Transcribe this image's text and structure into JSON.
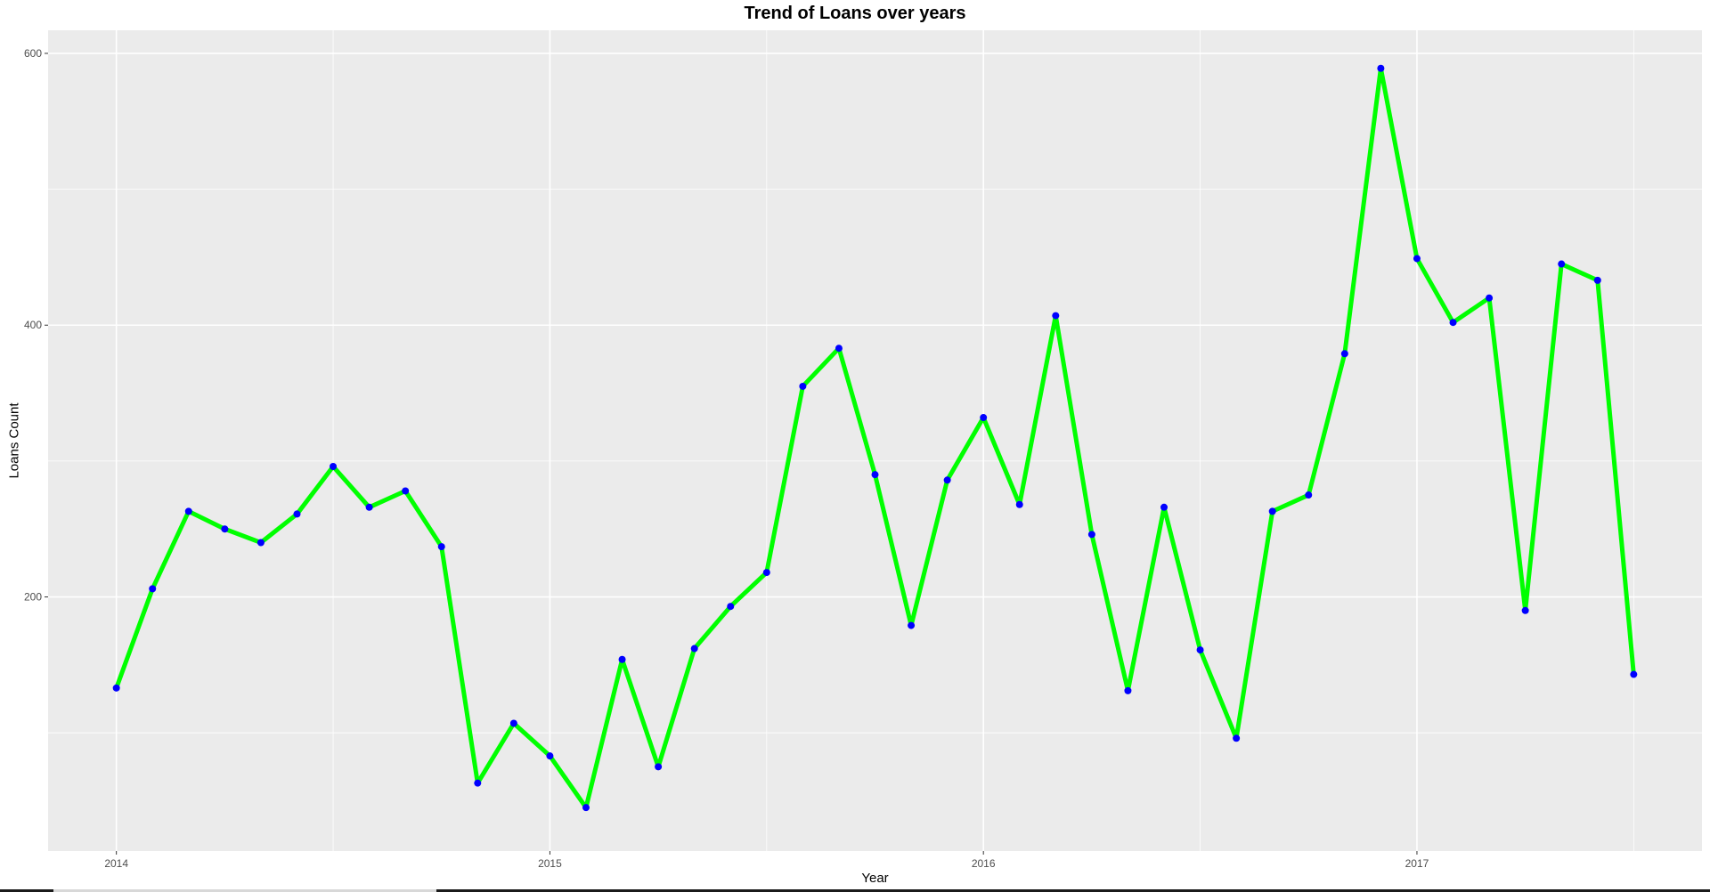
{
  "chart_data": {
    "type": "line",
    "title": "Trend of Loans over years",
    "xlabel": "Year",
    "ylabel": "Loans Count",
    "x_ticks": [
      "2014",
      "2015",
      "2016",
      "2017"
    ],
    "y_ticks": [
      "200",
      "400",
      "600"
    ],
    "ylim": [
      13,
      617
    ],
    "grid": true,
    "line_color": "#00ff00",
    "point_color": "#0000ff",
    "panel_color": "#ebebeb",
    "series": [
      {
        "x": [
          "2014-01",
          "2014-02",
          "2014-03",
          "2014-04",
          "2014-05",
          "2014-06",
          "2014-07",
          "2014-08",
          "2014-09",
          "2014-10",
          "2014-11",
          "2014-12",
          "2015-01",
          "2015-02",
          "2015-03",
          "2015-04",
          "2015-05",
          "2015-06",
          "2015-07",
          "2015-08",
          "2015-09",
          "2015-10",
          "2015-11",
          "2015-12",
          "2016-01",
          "2016-02",
          "2016-03",
          "2016-04",
          "2016-05",
          "2016-06",
          "2016-07",
          "2016-08",
          "2016-09",
          "2016-10",
          "2016-11",
          "2016-12",
          "2017-01",
          "2017-02",
          "2017-03",
          "2017-04",
          "2017-05",
          "2017-06",
          "2017-07"
        ],
        "values": [
          133,
          206,
          263,
          250,
          240,
          261,
          296,
          266,
          278,
          237,
          63,
          107,
          83,
          45,
          154,
          75,
          162,
          193,
          218,
          355,
          383,
          290,
          179,
          286,
          332,
          268,
          407,
          246,
          131,
          266,
          161,
          96,
          263,
          275,
          379,
          589,
          449,
          402,
          420,
          190,
          445,
          433,
          143
        ]
      }
    ]
  }
}
